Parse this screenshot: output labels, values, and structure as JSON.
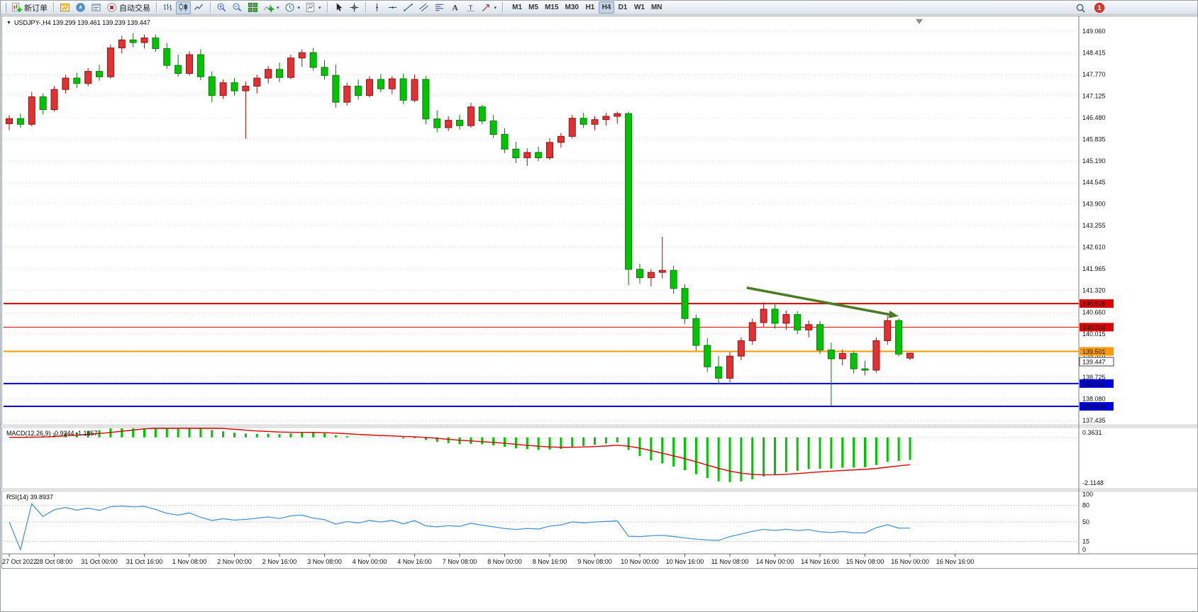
{
  "toolbar": {
    "new_order_label": "新订单",
    "autotrade_label": "自动交易",
    "timeframes": [
      "M1",
      "M5",
      "M15",
      "M30",
      "H1",
      "H4",
      "D1",
      "W1",
      "MN"
    ],
    "active_timeframe": "H4",
    "notification_count": "1"
  },
  "chart": {
    "title": "USDJPY-,H4 139.299 139.461 139.239 139.447",
    "symbol": "USDJPY-",
    "period": "H4"
  },
  "chart_data": {
    "type": "candlestick",
    "symbol": "USDJPY-",
    "timeframe": "H4",
    "current_bar": {
      "open": 139.299,
      "high": 139.461,
      "low": 139.239,
      "close": 139.447
    },
    "up_color": "#e03232",
    "down_color": "#00c400",
    "price_axis_labels": [
      "149.060",
      "148.415",
      "147.770",
      "147.125",
      "146.480",
      "145.835",
      "145.190",
      "144.545",
      "143.900",
      "143.255",
      "142.610",
      "141.965",
      "141.320",
      "140.660",
      "140.015",
      "139.370",
      "138.725",
      "138.080",
      "137.435"
    ],
    "time_axis_labels": [
      "27 Oct 2022",
      "28 Oct 08:00",
      "31 Oct 00:00",
      "31 Oct 16:00",
      "1 Nov 08:00",
      "2 Nov 00:00",
      "2 Nov 16:00",
      "3 Nov 08:00",
      "4 Nov 00:00",
      "4 Nov 16:00",
      "7 Nov 08:00",
      "8 Nov 00:00",
      "8 Nov 16:00",
      "9 Nov 08:00",
      "10 Nov 00:00",
      "10 Nov 16:00",
      "11 Nov 08:00",
      "14 Nov 00:00",
      "14 Nov 16:00",
      "15 Nov 08:00",
      "16 Nov 00:00",
      "16 Nov 16:00"
    ],
    "horizontal_lines": [
      {
        "label": "140.928",
        "price": 140.928,
        "color": "#dd0000",
        "width": 2
      },
      {
        "label": "140.224",
        "price": 140.224,
        "color": "#dd0000",
        "width": 1
      },
      {
        "label": "139.501",
        "price": 139.501,
        "color": "#ff9900",
        "width": 2
      },
      {
        "label": "138.540",
        "price": 138.54,
        "color": "#0000dd",
        "width": 2
      },
      {
        "label": "137.859",
        "price": 137.859,
        "color": "#0000dd",
        "width": 2
      }
    ],
    "current_price": 139.447,
    "current_price_label": "139.447",
    "trend_arrow": {
      "from_bar": 65.5,
      "from_price": 141.4,
      "to_bar": 79,
      "to_price": 140.55,
      "color": "#4a7d23"
    },
    "ohlc": [
      [
        146.3,
        146.55,
        146.1,
        146.45
      ],
      [
        146.45,
        146.6,
        146.18,
        146.28
      ],
      [
        146.28,
        147.25,
        146.22,
        147.1
      ],
      [
        147.1,
        147.2,
        146.58,
        146.72
      ],
      [
        146.72,
        147.42,
        146.66,
        147.32
      ],
      [
        147.32,
        147.76,
        147.2,
        147.66
      ],
      [
        147.66,
        147.82,
        147.36,
        147.5
      ],
      [
        147.5,
        147.96,
        147.42,
        147.86
      ],
      [
        147.86,
        148.06,
        147.58,
        147.7
      ],
      [
        147.7,
        148.66,
        147.64,
        148.56
      ],
      [
        148.56,
        148.92,
        148.4,
        148.8
      ],
      [
        148.8,
        149.0,
        148.58,
        148.72
      ],
      [
        148.72,
        148.96,
        148.54,
        148.86
      ],
      [
        148.86,
        148.96,
        148.44,
        148.54
      ],
      [
        148.54,
        148.7,
        147.94,
        148.04
      ],
      [
        148.04,
        148.36,
        147.7,
        147.8
      ],
      [
        147.8,
        148.46,
        147.74,
        148.36
      ],
      [
        148.36,
        148.52,
        147.6,
        147.7
      ],
      [
        147.7,
        147.86,
        146.94,
        147.14
      ],
      [
        147.14,
        147.62,
        147.04,
        147.52
      ],
      [
        147.52,
        147.66,
        147.14,
        147.28
      ],
      [
        147.28,
        147.56,
        145.85,
        147.42
      ],
      [
        147.42,
        147.76,
        147.2,
        147.66
      ],
      [
        147.66,
        148.02,
        147.5,
        147.92
      ],
      [
        147.92,
        148.12,
        147.54,
        147.68
      ],
      [
        147.68,
        148.36,
        147.62,
        148.26
      ],
      [
        148.26,
        148.52,
        148.0,
        148.42
      ],
      [
        148.42,
        148.56,
        147.88,
        147.98
      ],
      [
        147.98,
        148.2,
        147.62,
        147.74
      ],
      [
        147.74,
        148.06,
        146.78,
        146.94
      ],
      [
        146.94,
        147.52,
        146.84,
        147.42
      ],
      [
        147.42,
        147.62,
        147.02,
        147.14
      ],
      [
        147.14,
        147.72,
        147.08,
        147.62
      ],
      [
        147.62,
        147.78,
        147.24,
        147.34
      ],
      [
        147.34,
        147.72,
        147.18,
        147.64
      ],
      [
        147.64,
        147.8,
        146.88,
        147.0
      ],
      [
        147.0,
        147.76,
        146.94,
        147.62
      ],
      [
        147.62,
        147.72,
        146.28,
        146.44
      ],
      [
        146.44,
        146.7,
        146.04,
        146.18
      ],
      [
        146.18,
        146.52,
        146.08,
        146.4
      ],
      [
        146.4,
        146.56,
        146.12,
        146.24
      ],
      [
        146.24,
        146.92,
        146.18,
        146.8
      ],
      [
        146.8,
        146.86,
        146.28,
        146.38
      ],
      [
        146.38,
        146.56,
        145.88,
        145.98
      ],
      [
        145.98,
        146.16,
        145.42,
        145.54
      ],
      [
        145.54,
        145.76,
        145.12,
        145.28
      ],
      [
        145.28,
        145.56,
        145.04,
        145.44
      ],
      [
        145.44,
        145.62,
        145.18,
        145.28
      ],
      [
        145.28,
        145.86,
        145.22,
        145.74
      ],
      [
        145.74,
        146.02,
        145.58,
        145.92
      ],
      [
        145.92,
        146.56,
        145.86,
        146.46
      ],
      [
        146.46,
        146.62,
        146.18,
        146.28
      ],
      [
        146.28,
        146.52,
        146.1,
        146.42
      ],
      [
        146.42,
        146.62,
        146.24,
        146.52
      ],
      [
        146.52,
        146.66,
        146.3,
        146.6
      ],
      [
        146.6,
        146.66,
        141.48,
        141.95
      ],
      [
        141.95,
        142.12,
        141.52,
        141.7
      ],
      [
        141.7,
        141.96,
        141.44,
        141.86
      ],
      [
        141.86,
        142.92,
        141.68,
        141.92
      ],
      [
        141.92,
        142.06,
        141.22,
        141.38
      ],
      [
        141.38,
        141.5,
        140.32,
        140.48
      ],
      [
        140.48,
        140.6,
        139.52,
        139.68
      ],
      [
        139.68,
        139.9,
        138.88,
        139.04
      ],
      [
        139.04,
        139.36,
        138.52,
        138.7
      ],
      [
        138.7,
        139.48,
        138.58,
        139.36
      ],
      [
        139.36,
        139.92,
        139.24,
        139.82
      ],
      [
        139.82,
        140.48,
        139.7,
        140.36
      ],
      [
        140.36,
        140.96,
        140.24,
        140.76
      ],
      [
        140.76,
        140.9,
        140.18,
        140.34
      ],
      [
        140.34,
        140.72,
        140.14,
        140.6
      ],
      [
        140.6,
        140.7,
        140.02,
        140.14
      ],
      [
        140.14,
        140.42,
        139.92,
        140.3
      ],
      [
        140.3,
        140.4,
        139.42,
        139.54
      ],
      [
        139.54,
        139.76,
        137.86,
        139.28
      ],
      [
        139.28,
        139.56,
        139.08,
        139.44
      ],
      [
        139.44,
        139.52,
        138.84,
        138.98
      ],
      [
        138.98,
        139.22,
        138.78,
        138.94
      ],
      [
        138.94,
        139.92,
        138.86,
        139.82
      ],
      [
        139.82,
        140.56,
        139.7,
        140.42
      ],
      [
        140.42,
        140.48,
        139.35,
        139.42
      ],
      [
        139.299,
        139.461,
        139.239,
        139.447
      ]
    ],
    "macd": {
      "label": "MACD(12,26,9) -0.9344 -1.1857",
      "fast": 12,
      "slow": 26,
      "signal": 9,
      "main_value": -0.9344,
      "signal_value": -1.1857,
      "scale_max": 0.3631,
      "scale_min": -2.1148,
      "scale_labels": [
        "0.3631",
        "-2.1148"
      ],
      "histogram_color": "#00c400",
      "signal_color": "#e00000"
    },
    "rsi": {
      "label": "RSI(14) 39.8937",
      "period": 14,
      "value": 39.8937,
      "scale_labels": [
        "100",
        "80",
        "50",
        "15",
        "0"
      ],
      "levels": [
        80,
        50,
        15
      ],
      "line_color": "#4f94d4"
    }
  }
}
